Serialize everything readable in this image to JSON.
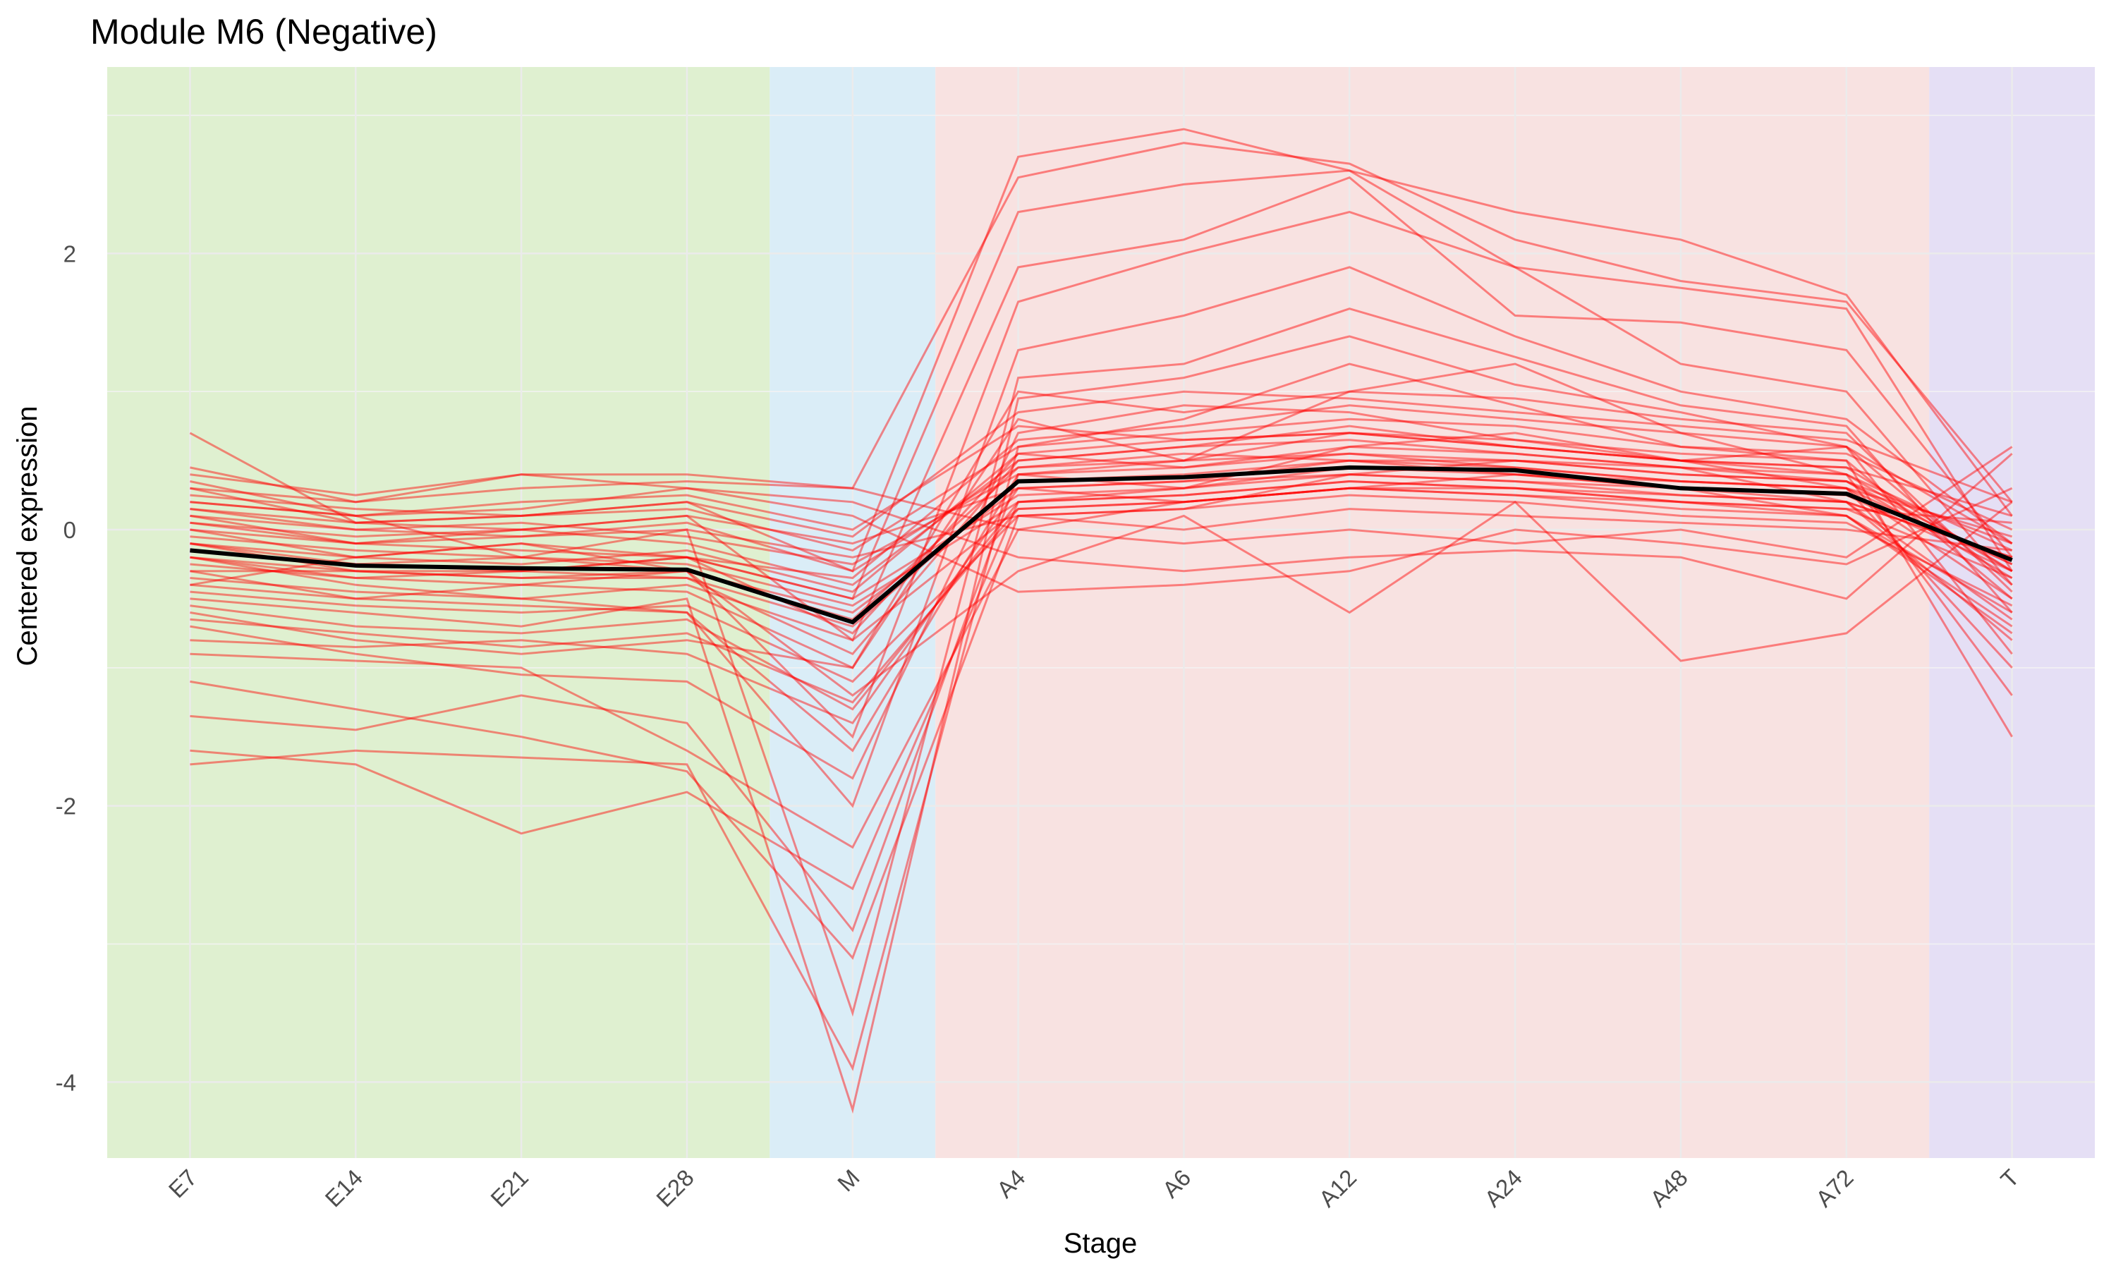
{
  "chart_data": {
    "type": "line",
    "title": "Module M6 (Negative)",
    "xlabel": "Stage",
    "ylabel": "Centered expression",
    "categories": [
      "E7",
      "E14",
      "E21",
      "E28",
      "M",
      "A4",
      "A6",
      "A12",
      "A24",
      "A48",
      "A72",
      "T"
    ],
    "yticks": [
      -4,
      -2,
      0,
      2
    ],
    "ytick_labels": [
      "-4",
      "-2",
      "0",
      "2"
    ],
    "ylim": [
      -4.55,
      3.35
    ],
    "grid": true,
    "stage_bands": [
      {
        "from": "E7",
        "to": "E28",
        "color": "#dff0d0"
      },
      {
        "from": "M",
        "to": "M",
        "color": "#daedf7"
      },
      {
        "from": "A4",
        "to": "A72",
        "color": "#f8e2e1"
      },
      {
        "from": "T",
        "to": "T",
        "color": "#e5dff5"
      }
    ],
    "gene_line_color": "#ff0000",
    "mean_line_color": "#000000",
    "series": [
      {
        "values": [
          -0.15,
          -0.26,
          -0.28,
          -0.29,
          -0.67,
          0.35,
          0.38,
          0.45,
          0.43,
          0.3,
          0.26,
          -0.22
        ],
        "role": "mean"
      },
      {
        "values": [
          0.7,
          0.05,
          0.1,
          0.2,
          -0.3,
          2.7,
          2.9,
          2.6,
          2.3,
          2.1,
          1.7,
          0.1
        ]
      },
      {
        "values": [
          0.3,
          0.2,
          0.4,
          0.4,
          0.3,
          2.55,
          2.8,
          2.65,
          2.1,
          1.8,
          1.65,
          0.2
        ]
      },
      {
        "values": [
          -0.1,
          -0.3,
          -0.3,
          -0.2,
          -0.5,
          2.3,
          2.5,
          2.6,
          1.9,
          1.75,
          1.6,
          -0.3
        ]
      },
      {
        "values": [
          0.1,
          -0.1,
          0.0,
          0.1,
          -0.8,
          1.9,
          2.1,
          2.55,
          1.55,
          1.5,
          1.3,
          -0.2
        ]
      },
      {
        "values": [
          -0.4,
          -0.2,
          -0.1,
          -0.3,
          -1.5,
          1.65,
          2.0,
          2.3,
          1.9,
          1.2,
          1.0,
          -0.4
        ]
      },
      {
        "values": [
          -0.2,
          -0.4,
          -0.5,
          -0.6,
          -2.0,
          1.3,
          1.55,
          1.9,
          1.4,
          1.0,
          0.8,
          -0.1
        ]
      },
      {
        "values": [
          0.2,
          0.1,
          -0.2,
          0.0,
          -3.5,
          1.1,
          1.2,
          1.6,
          1.25,
          0.9,
          0.75,
          -0.6
        ]
      },
      {
        "values": [
          -0.5,
          -0.6,
          -0.7,
          -0.5,
          -4.2,
          0.95,
          1.1,
          1.4,
          1.05,
          0.85,
          0.6,
          -0.9
        ]
      },
      {
        "values": [
          -1.7,
          -1.6,
          -1.65,
          -1.7,
          -3.9,
          0.6,
          0.8,
          1.2,
          0.9,
          0.6,
          0.5,
          -1.5
        ]
      },
      {
        "values": [
          -1.35,
          -1.45,
          -1.2,
          -1.4,
          -2.9,
          0.4,
          0.5,
          1.0,
          1.2,
          0.7,
          0.4,
          -1.2
        ]
      },
      {
        "values": [
          -1.6,
          -1.7,
          -2.2,
          -1.9,
          -2.6,
          0.2,
          0.3,
          0.6,
          0.7,
          0.5,
          0.3,
          -1.0
        ]
      },
      {
        "values": [
          -1.1,
          -1.3,
          -1.5,
          -1.75,
          -3.1,
          0.1,
          0.15,
          0.4,
          0.5,
          0.45,
          0.2,
          -0.8
        ]
      },
      {
        "values": [
          -0.9,
          -0.95,
          -1.0,
          -1.6,
          -2.3,
          0.0,
          0.2,
          0.3,
          0.4,
          0.3,
          0.1,
          -0.7
        ]
      },
      {
        "values": [
          0.45,
          0.2,
          0.3,
          0.35,
          0.3,
          0.0,
          -0.1,
          0.0,
          -0.1,
          0.0,
          -0.2,
          0.6
        ]
      },
      {
        "values": [
          0.4,
          0.25,
          0.4,
          0.3,
          0.2,
          -0.2,
          -0.3,
          -0.2,
          -0.15,
          -0.2,
          -0.5,
          0.55
        ]
      },
      {
        "values": [
          0.2,
          0.1,
          0.15,
          0.3,
          0.1,
          -0.45,
          -0.4,
          -0.3,
          0.0,
          -0.1,
          -0.25,
          0.3
        ]
      },
      {
        "values": [
          -0.3,
          -0.5,
          -0.4,
          -0.3,
          -1.2,
          -0.3,
          0.1,
          -0.6,
          0.2,
          -0.95,
          -0.75,
          0.2
        ]
      },
      {
        "values": [
          -0.6,
          -0.8,
          -0.9,
          -0.8,
          -1.0,
          0.8,
          0.5,
          0.7,
          0.6,
          0.5,
          0.6,
          -0.4
        ]
      },
      {
        "values": [
          -0.7,
          -0.9,
          -1.05,
          -1.1,
          -1.8,
          0.7,
          0.9,
          0.85,
          0.65,
          0.55,
          0.5,
          -0.5
        ]
      },
      {
        "values": [
          0.05,
          -0.05,
          0.0,
          -0.1,
          -0.4,
          0.5,
          0.6,
          0.75,
          0.6,
          0.5,
          0.4,
          -0.3
        ]
      },
      {
        "values": [
          -0.2,
          -0.3,
          -0.35,
          -0.3,
          -0.6,
          0.3,
          0.35,
          0.5,
          0.45,
          0.35,
          0.3,
          -0.25
        ]
      },
      {
        "values": [
          0.0,
          -0.1,
          -0.15,
          -0.2,
          -0.5,
          0.25,
          0.3,
          0.4,
          0.35,
          0.25,
          0.2,
          -0.2
        ]
      },
      {
        "values": [
          -0.35,
          -0.45,
          -0.5,
          -0.4,
          -0.8,
          0.15,
          0.2,
          0.3,
          0.3,
          0.2,
          0.15,
          -0.35
        ]
      },
      {
        "values": [
          0.15,
          0.0,
          -0.05,
          0.05,
          -0.3,
          0.45,
          0.5,
          0.55,
          0.5,
          0.4,
          0.35,
          -0.1
        ]
      },
      {
        "values": [
          -0.45,
          -0.55,
          -0.6,
          -0.55,
          -1.1,
          0.1,
          0.15,
          0.25,
          0.2,
          0.1,
          0.05,
          -0.55
        ]
      },
      {
        "values": [
          -0.1,
          -0.2,
          -0.25,
          -0.15,
          -0.45,
          0.55,
          0.45,
          0.6,
          0.55,
          0.45,
          0.4,
          -0.15
        ]
      },
      {
        "values": [
          -0.25,
          -0.35,
          -0.3,
          -0.35,
          -0.7,
          0.35,
          0.4,
          0.5,
          0.4,
          0.3,
          0.25,
          -0.3
        ]
      },
      {
        "values": [
          0.25,
          0.15,
          0.1,
          0.15,
          -0.15,
          0.6,
          0.7,
          0.8,
          0.75,
          0.6,
          0.55,
          0.0
        ]
      },
      {
        "values": [
          -0.55,
          -0.7,
          -0.75,
          -0.65,
          -1.3,
          0.2,
          0.25,
          0.35,
          0.3,
          0.2,
          0.1,
          -0.6
        ]
      },
      {
        "values": [
          0.1,
          0.0,
          0.05,
          -0.05,
          -0.25,
          0.4,
          0.3,
          0.45,
          0.4,
          0.35,
          0.3,
          -0.05
        ]
      },
      {
        "values": [
          -0.05,
          -0.15,
          -0.2,
          -0.25,
          -0.55,
          0.2,
          0.25,
          0.35,
          0.3,
          0.25,
          0.2,
          -0.2
        ]
      },
      {
        "values": [
          -0.15,
          -0.25,
          -0.2,
          -0.3,
          -0.65,
          0.45,
          0.55,
          0.5,
          0.5,
          0.4,
          0.35,
          -0.25
        ]
      },
      {
        "values": [
          0.35,
          0.1,
          0.2,
          0.25,
          0.0,
          0.75,
          0.65,
          0.7,
          0.6,
          0.5,
          0.45,
          0.1
        ]
      },
      {
        "values": [
          -0.8,
          -0.85,
          -0.8,
          -0.9,
          -1.4,
          0.3,
          0.35,
          0.4,
          0.35,
          0.3,
          0.2,
          -0.65
        ]
      },
      {
        "values": [
          -0.3,
          -0.3,
          -0.35,
          -0.35,
          -0.9,
          0.5,
          0.6,
          0.65,
          0.55,
          0.45,
          0.35,
          -0.35
        ]
      },
      {
        "values": [
          0.0,
          -0.2,
          -0.1,
          -0.2,
          -0.35,
          0.65,
          0.75,
          0.9,
          0.8,
          0.7,
          0.6,
          -0.1
        ]
      },
      {
        "values": [
          -0.2,
          -0.35,
          -0.4,
          -0.45,
          -1.0,
          1.0,
          0.85,
          1.0,
          0.95,
          0.8,
          0.7,
          -0.45
        ]
      },
      {
        "values": [
          0.05,
          -0.1,
          -0.05,
          0.0,
          -0.2,
          0.1,
          0.0,
          0.15,
          0.1,
          0.05,
          0.0,
          -0.15
        ]
      },
      {
        "values": [
          -0.4,
          -0.5,
          -0.55,
          -0.6,
          -1.6,
          0.4,
          0.45,
          0.55,
          0.45,
          0.35,
          0.3,
          -0.5
        ]
      },
      {
        "values": [
          0.15,
          0.05,
          0.0,
          0.1,
          -0.1,
          0.3,
          0.2,
          0.3,
          0.25,
          0.2,
          0.15,
          0.05
        ]
      },
      {
        "values": [
          -0.1,
          -0.25,
          -0.3,
          -0.2,
          -0.75,
          0.55,
          0.65,
          0.7,
          0.65,
          0.5,
          0.45,
          -0.3
        ]
      },
      {
        "values": [
          0.3,
          0.05,
          0.1,
          0.2,
          -0.05,
          0.85,
          1.0,
          0.95,
          0.85,
          0.75,
          0.65,
          0.2
        ]
      },
      {
        "values": [
          -0.65,
          -0.75,
          -0.85,
          -0.75,
          -1.25,
          0.15,
          0.2,
          0.3,
          0.25,
          0.15,
          0.1,
          -0.75
        ]
      }
    ]
  }
}
